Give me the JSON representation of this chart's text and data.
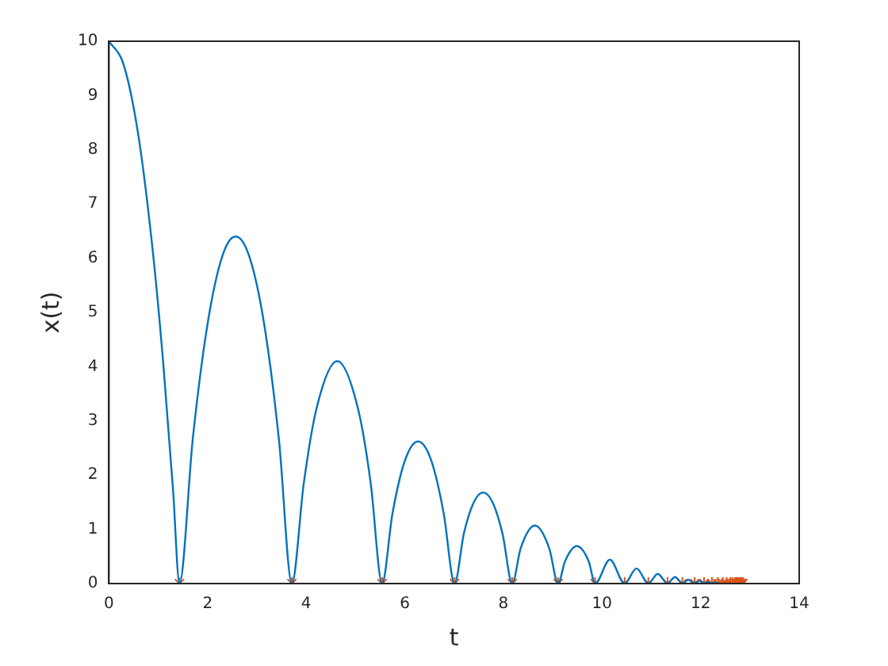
{
  "chart_data": {
    "type": "line",
    "xlabel": "t",
    "ylabel": "x(t)",
    "xlim": [
      0,
      14
    ],
    "xticks": [
      0,
      2,
      4,
      6,
      8,
      10,
      12,
      14
    ],
    "ylim": [
      0,
      10
    ],
    "yticks": [
      0,
      1,
      2,
      3,
      4,
      5,
      6,
      7,
      8,
      9,
      10
    ],
    "grid": false,
    "legend": false,
    "series": [
      {
        "type": "line",
        "marker": "none",
        "color": "#0072bd",
        "x": [
          0,
          0.3,
          0.6,
          0.9,
          1.1,
          1.3,
          1.43,
          1.7,
          2.0,
          2.3,
          2.57,
          2.85,
          3.15,
          3.45,
          3.71,
          3.95,
          4.2,
          4.63,
          5.06,
          5.31,
          5.54,
          5.75,
          6.0,
          6.27,
          6.54,
          6.79,
          7.01,
          7.2,
          7.4,
          7.59,
          7.78,
          7.98,
          8.18,
          8.35,
          8.64,
          8.93,
          9.11,
          9.25,
          9.49,
          9.73,
          9.86,
          10.16,
          10.46,
          10.7,
          10.94,
          11.13,
          11.33,
          11.48,
          11.63,
          11.75,
          11.88,
          11.98,
          12.07,
          12.15,
          12.23,
          12.29,
          12.35
        ],
        "values": [
          10,
          9.56,
          8.24,
          6.03,
          4.07,
          1.72,
          0,
          2.67,
          4.79,
          6.04,
          6.4,
          6.02,
          4.77,
          2.63,
          0,
          1.84,
          3.19,
          4.1,
          3.19,
          1.84,
          0,
          1.29,
          2.26,
          2.62,
          2.26,
          1.29,
          0,
          0.93,
          1.5,
          1.68,
          1.5,
          0.93,
          0,
          0.65,
          1.07,
          0.65,
          0,
          0.41,
          0.69,
          0.41,
          0,
          0.44,
          0,
          0.28,
          0,
          0.18,
          0,
          0.12,
          0,
          0.07,
          0,
          0.05,
          0,
          0.03,
          0,
          0.02,
          0
        ]
      },
      {
        "type": "scatter",
        "marker": "cross",
        "color": "#d95319",
        "x": [
          1.43,
          3.71,
          5.54,
          7.01,
          8.18,
          9.11,
          9.86,
          10.46,
          10.94,
          11.33,
          11.63,
          11.88,
          12.07,
          12.23,
          12.35,
          12.45,
          12.53,
          12.6,
          12.65,
          12.7,
          12.73,
          12.76,
          12.79,
          12.81,
          12.83,
          12.86
        ],
        "values": [
          0,
          0,
          0,
          0,
          0,
          0,
          0,
          0,
          0,
          0,
          0,
          0,
          0,
          0,
          0,
          0,
          0,
          0,
          0,
          0,
          0,
          0,
          0,
          0,
          0,
          0
        ]
      }
    ]
  }
}
